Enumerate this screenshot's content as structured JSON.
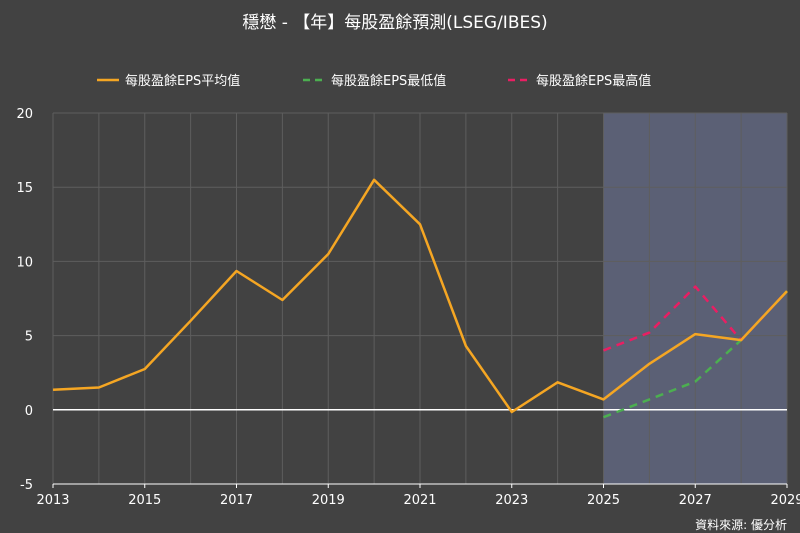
{
  "chart_data": {
    "type": "line",
    "title": "穩懋 - 【年】每股盈餘預測(LSEG/IBES)",
    "source": "資料來源: 優分析",
    "xlim": [
      2013,
      2029
    ],
    "ylim": [
      -5,
      20
    ],
    "x_ticks": [
      "2013",
      "2015",
      "2017",
      "2019",
      "2021",
      "2023",
      "2025",
      "2027",
      "2029"
    ],
    "y_ticks": [
      "20",
      "15",
      "10",
      "5",
      "0",
      "-5"
    ],
    "grid": true,
    "legend_position": "top",
    "forecast_start": 2025,
    "series": [
      {
        "name": "每股盈餘EPS平均值",
        "color": "#f5a623",
        "style": "solid",
        "x": [
          2013,
          2014,
          2015,
          2016,
          2017,
          2018,
          2019,
          2020,
          2021,
          2022,
          2023,
          2024,
          2025,
          2026,
          2027,
          2028,
          2029
        ],
        "values": [
          1.35,
          1.5,
          2.75,
          6.0,
          9.35,
          7.4,
          10.5,
          15.5,
          12.5,
          4.3,
          -0.15,
          1.85,
          0.7,
          3.1,
          5.1,
          4.7,
          8.0
        ]
      },
      {
        "name": "每股盈餘EPS最低值",
        "color": "#4caf50",
        "style": "dashed",
        "x": [
          2025,
          2026,
          2027,
          2028,
          2029
        ],
        "values": [
          -0.5,
          0.7,
          1.9,
          4.7,
          8.0
        ]
      },
      {
        "name": "每股盈餘EPS最高值",
        "color": "#e91e63",
        "style": "dashed",
        "x": [
          2025,
          2026,
          2027,
          2028,
          2029
        ],
        "values": [
          4.0,
          5.2,
          8.3,
          4.7,
          8.0
        ]
      }
    ],
    "colors": {
      "background": "#424242",
      "forecast_band": "#5b6075",
      "grid": "#5e5e5e",
      "zero_line": "#ffffff"
    }
  }
}
